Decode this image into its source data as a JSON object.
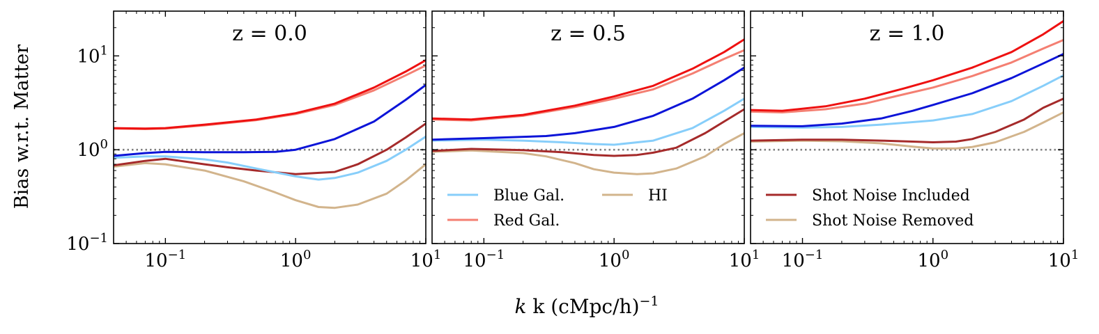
{
  "chart_data": {
    "type": "line",
    "ylabel": "Bias w.r.t. Matter",
    "xlabel": "k (cMpc/h)",
    "xlabel_exponent": "−1",
    "xscale": "log",
    "yscale": "log",
    "xlim": [
      0.04,
      10
    ],
    "ylim": [
      0.1,
      30
    ],
    "yticks": [
      {
        "value": 10,
        "label": "10",
        "exp": "1"
      },
      {
        "value": 1,
        "label": "10",
        "exp": "0"
      },
      {
        "value": 0.1,
        "label": "10",
        "exp": "−1"
      }
    ],
    "xticks": [
      {
        "value": 0.1,
        "label": "10",
        "exp": "−1"
      },
      {
        "value": 1,
        "label": "10",
        "exp": "0"
      },
      {
        "value": 10,
        "label": "10",
        "exp": "1"
      }
    ],
    "reference_line": {
      "y": 1.0,
      "style": "dotted",
      "color": "#808080"
    },
    "colors": {
      "blue_sn": "#0c14d8",
      "blue_nsn": "#87cefa",
      "red_sn": "#ee1111",
      "red_nsn": "#f47f72",
      "hi_sn": "#a52a2a",
      "hi_nsn": "#d2b48c"
    },
    "legends": [
      {
        "panel": 1,
        "columns": 2,
        "placement": "lower-left",
        "entries": [
          {
            "label": "Blue Gal.",
            "color": "#87cefa"
          },
          {
            "label": "Red Gal.",
            "color": "#f47f72"
          },
          {
            "label": "HI",
            "color": "#d2b48c"
          }
        ]
      },
      {
        "panel": 2,
        "columns": 1,
        "placement": "lower-left",
        "entries": [
          {
            "label": "Shot Noise Included",
            "color": "#a52a2a"
          },
          {
            "label": "Shot Noise Removed",
            "color": "#d2b48c"
          }
        ]
      }
    ],
    "panels": [
      {
        "title": "z = 0.0",
        "series": [
          {
            "key": "red_sn",
            "points": [
              [
                0.04,
                1.7
              ],
              [
                0.07,
                1.68
              ],
              [
                0.1,
                1.7
              ],
              [
                0.2,
                1.85
              ],
              [
                0.5,
                2.1
              ],
              [
                1.0,
                2.45
              ],
              [
                2.0,
                3.1
              ],
              [
                4.0,
                4.6
              ],
              [
                7.0,
                6.8
              ],
              [
                10,
                9.0
              ]
            ]
          },
          {
            "key": "red_nsn",
            "points": [
              [
                0.04,
                1.68
              ],
              [
                0.07,
                1.66
              ],
              [
                0.1,
                1.68
              ],
              [
                0.2,
                1.82
              ],
              [
                0.5,
                2.07
              ],
              [
                1.0,
                2.4
              ],
              [
                2.0,
                3.0
              ],
              [
                4.0,
                4.3
              ],
              [
                7.0,
                6.2
              ],
              [
                10,
                7.9
              ]
            ]
          },
          {
            "key": "blue_sn",
            "points": [
              [
                0.04,
                0.86
              ],
              [
                0.07,
                0.92
              ],
              [
                0.1,
                0.95
              ],
              [
                0.2,
                0.94
              ],
              [
                0.4,
                0.94
              ],
              [
                0.7,
                0.95
              ],
              [
                1.0,
                1.0
              ],
              [
                2.0,
                1.3
              ],
              [
                4.0,
                2.0
              ],
              [
                7.0,
                3.4
              ],
              [
                10,
                4.9
              ]
            ]
          },
          {
            "key": "blue_nsn",
            "points": [
              [
                0.04,
                0.82
              ],
              [
                0.07,
                0.85
              ],
              [
                0.1,
                0.85
              ],
              [
                0.2,
                0.79
              ],
              [
                0.3,
                0.73
              ],
              [
                0.5,
                0.63
              ],
              [
                1.0,
                0.52
              ],
              [
                1.5,
                0.48
              ],
              [
                2.0,
                0.5
              ],
              [
                3.0,
                0.57
              ],
              [
                5.0,
                0.76
              ],
              [
                7.0,
                1.0
              ],
              [
                10,
                1.38
              ]
            ]
          },
          {
            "key": "hi_sn",
            "points": [
              [
                0.04,
                0.68
              ],
              [
                0.07,
                0.76
              ],
              [
                0.1,
                0.8
              ],
              [
                0.2,
                0.7
              ],
              [
                0.3,
                0.65
              ],
              [
                0.5,
                0.6
              ],
              [
                1.0,
                0.55
              ],
              [
                2.0,
                0.58
              ],
              [
                3.0,
                0.7
              ],
              [
                5.0,
                1.0
              ],
              [
                7.0,
                1.35
              ],
              [
                10,
                1.9
              ]
            ]
          },
          {
            "key": "hi_nsn",
            "points": [
              [
                0.04,
                0.66
              ],
              [
                0.07,
                0.72
              ],
              [
                0.1,
                0.7
              ],
              [
                0.2,
                0.6
              ],
              [
                0.4,
                0.46
              ],
              [
                0.7,
                0.35
              ],
              [
                1.0,
                0.29
              ],
              [
                1.5,
                0.245
              ],
              [
                2.0,
                0.24
              ],
              [
                3.0,
                0.26
              ],
              [
                5.0,
                0.34
              ],
              [
                7.0,
                0.47
              ],
              [
                10,
                0.7
              ]
            ]
          }
        ]
      },
      {
        "title": "z = 0.5",
        "series": [
          {
            "key": "red_sn",
            "points": [
              [
                0.04,
                2.15
              ],
              [
                0.08,
                2.1
              ],
              [
                0.2,
                2.35
              ],
              [
                0.5,
                2.95
              ],
              [
                1.0,
                3.7
              ],
              [
                2.0,
                4.8
              ],
              [
                4.0,
                7.3
              ],
              [
                7.0,
                11.0
              ],
              [
                10,
                15.0
              ]
            ]
          },
          {
            "key": "red_nsn",
            "points": [
              [
                0.04,
                2.1
              ],
              [
                0.08,
                2.05
              ],
              [
                0.2,
                2.3
              ],
              [
                0.5,
                2.85
              ],
              [
                1.0,
                3.5
              ],
              [
                2.0,
                4.4
              ],
              [
                4.0,
                6.5
              ],
              [
                7.0,
                9.3
              ],
              [
                10,
                11.5
              ]
            ]
          },
          {
            "key": "blue_sn",
            "points": [
              [
                0.04,
                1.28
              ],
              [
                0.1,
                1.33
              ],
              [
                0.3,
                1.4
              ],
              [
                0.5,
                1.5
              ],
              [
                1.0,
                1.75
              ],
              [
                2.0,
                2.3
              ],
              [
                4.0,
                3.5
              ],
              [
                7.0,
                5.5
              ],
              [
                10,
                7.5
              ]
            ]
          },
          {
            "key": "blue_nsn",
            "points": [
              [
                0.04,
                1.25
              ],
              [
                0.1,
                1.28
              ],
              [
                0.2,
                1.25
              ],
              [
                0.4,
                1.2
              ],
              [
                0.7,
                1.15
              ],
              [
                1.0,
                1.13
              ],
              [
                2.0,
                1.25
              ],
              [
                4.0,
                1.7
              ],
              [
                7.0,
                2.6
              ],
              [
                10,
                3.5
              ]
            ]
          },
          {
            "key": "hi_sn",
            "points": [
              [
                0.04,
                0.97
              ],
              [
                0.08,
                1.02
              ],
              [
                0.2,
                0.99
              ],
              [
                0.4,
                0.94
              ],
              [
                0.7,
                0.88
              ],
              [
                1.0,
                0.86
              ],
              [
                1.5,
                0.88
              ],
              [
                2.0,
                0.93
              ],
              [
                3.0,
                1.05
              ],
              [
                5.0,
                1.5
              ],
              [
                7.0,
                2.0
              ],
              [
                10,
                2.7
              ]
            ]
          },
          {
            "key": "hi_nsn",
            "points": [
              [
                0.04,
                0.95
              ],
              [
                0.08,
                0.98
              ],
              [
                0.2,
                0.92
              ],
              [
                0.3,
                0.85
              ],
              [
                0.5,
                0.72
              ],
              [
                0.7,
                0.62
              ],
              [
                1.0,
                0.57
              ],
              [
                1.5,
                0.55
              ],
              [
                2.0,
                0.56
              ],
              [
                3.0,
                0.63
              ],
              [
                5.0,
                0.85
              ],
              [
                7.0,
                1.15
              ],
              [
                10,
                1.5
              ]
            ]
          }
        ]
      },
      {
        "title": "z = 1.0",
        "series": [
          {
            "key": "red_sn",
            "points": [
              [
                0.04,
                2.65
              ],
              [
                0.07,
                2.6
              ],
              [
                0.15,
                2.9
              ],
              [
                0.3,
                3.5
              ],
              [
                0.6,
                4.5
              ],
              [
                1.0,
                5.5
              ],
              [
                2.0,
                7.5
              ],
              [
                4.0,
                11.0
              ],
              [
                7.0,
                17.0
              ],
              [
                10,
                23.5
              ]
            ]
          },
          {
            "key": "red_nsn",
            "points": [
              [
                0.04,
                2.55
              ],
              [
                0.07,
                2.5
              ],
              [
                0.15,
                2.7
              ],
              [
                0.3,
                3.1
              ],
              [
                0.6,
                3.9
              ],
              [
                1.0,
                4.6
              ],
              [
                2.0,
                6.1
              ],
              [
                4.0,
                8.5
              ],
              [
                7.0,
                12.0
              ],
              [
                10,
                14.8
              ]
            ]
          },
          {
            "key": "blue_sn",
            "points": [
              [
                0.04,
                1.8
              ],
              [
                0.1,
                1.78
              ],
              [
                0.2,
                1.9
              ],
              [
                0.4,
                2.15
              ],
              [
                0.7,
                2.6
              ],
              [
                1.0,
                3.0
              ],
              [
                2.0,
                4.0
              ],
              [
                4.0,
                5.8
              ],
              [
                7.0,
                8.3
              ],
              [
                10,
                10.5
              ]
            ]
          },
          {
            "key": "blue_nsn",
            "points": [
              [
                0.04,
                1.75
              ],
              [
                0.1,
                1.72
              ],
              [
                0.2,
                1.75
              ],
              [
                0.4,
                1.85
              ],
              [
                0.7,
                1.97
              ],
              [
                1.0,
                2.05
              ],
              [
                2.0,
                2.4
              ],
              [
                4.0,
                3.3
              ],
              [
                7.0,
                4.8
              ],
              [
                10,
                6.2
              ]
            ]
          },
          {
            "key": "hi_sn",
            "points": [
              [
                0.04,
                1.25
              ],
              [
                0.1,
                1.28
              ],
              [
                0.2,
                1.28
              ],
              [
                0.4,
                1.25
              ],
              [
                0.7,
                1.22
              ],
              [
                1.0,
                1.2
              ],
              [
                1.5,
                1.22
              ],
              [
                2.0,
                1.3
              ],
              [
                3.0,
                1.55
              ],
              [
                5.0,
                2.1
              ],
              [
                7.0,
                2.8
              ],
              [
                10,
                3.5
              ]
            ]
          },
          {
            "key": "hi_nsn",
            "points": [
              [
                0.04,
                1.22
              ],
              [
                0.1,
                1.25
              ],
              [
                0.2,
                1.23
              ],
              [
                0.4,
                1.17
              ],
              [
                0.7,
                1.08
              ],
              [
                1.0,
                1.03
              ],
              [
                1.5,
                1.03
              ],
              [
                2.0,
                1.07
              ],
              [
                3.0,
                1.2
              ],
              [
                5.0,
                1.55
              ],
              [
                7.0,
                1.95
              ],
              [
                10,
                2.5
              ]
            ]
          }
        ]
      }
    ]
  }
}
